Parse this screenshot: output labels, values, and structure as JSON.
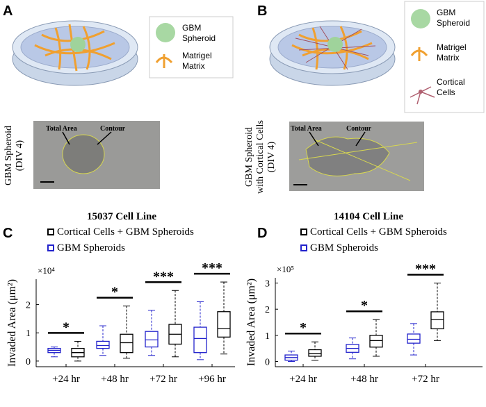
{
  "figure": {
    "panel_labels": [
      "A",
      "B",
      "C",
      "D"
    ],
    "legend_a": [
      [
        "GBM",
        "Spheroid"
      ],
      [
        "Matrigel",
        "Matrix"
      ]
    ],
    "legend_b": [
      [
        "GBM",
        "Spheroid"
      ],
      [
        "Matrigel",
        "Matrix"
      ],
      [
        "Cortical",
        "Cells"
      ]
    ],
    "side_label_a": [
      "GBM Spheroid",
      "(DIV 4)"
    ],
    "side_label_b": [
      "GBM Spheroid",
      "with Cortical Cells",
      "(DIV 4)"
    ],
    "micrograph_labels_a": [
      "Total Area",
      "Contour"
    ],
    "micrograph_labels_b": [
      "Total Area",
      "Contour"
    ]
  },
  "chart_data": [
    {
      "type": "box",
      "title": "15037 Cell Line",
      "y_label": "Invaded Area (μm²)",
      "y_multiplier": "×10⁴",
      "categories": [
        "+24 hr",
        "+48 hr",
        "+72 hr",
        "+96 hr"
      ],
      "ylim": [
        -0.2,
        2.9
      ],
      "yticks": [
        0,
        1,
        2
      ],
      "series": [
        {
          "name": "Cortical Cells + GBM Spheroids",
          "color": "#000000",
          "boxes": [
            {
              "min": 0,
              "q1": 0.15,
              "median": 0.3,
              "q3": 0.45,
              "max": 0.7
            },
            {
              "min": 0.1,
              "q1": 0.3,
              "median": 0.65,
              "q3": 0.95,
              "max": 1.95
            },
            {
              "min": 0.15,
              "q1": 0.6,
              "median": 0.95,
              "q3": 1.3,
              "max": 2.5
            },
            {
              "min": 0.25,
              "q1": 0.85,
              "median": 1.15,
              "q3": 1.75,
              "max": 2.8
            }
          ]
        },
        {
          "name": "GBM Spheroids",
          "color": "#2222cc",
          "boxes": [
            {
              "min": 0.15,
              "q1": 0.3,
              "median": 0.38,
              "q3": 0.45,
              "max": 0.5
            },
            {
              "min": 0.2,
              "q1": 0.45,
              "median": 0.55,
              "q3": 0.7,
              "max": 1.25
            },
            {
              "min": 0.2,
              "q1": 0.5,
              "median": 0.75,
              "q3": 1.05,
              "max": 1.8
            },
            {
              "min": 0.05,
              "q1": 0.3,
              "median": 0.8,
              "q3": 1.2,
              "max": 2.1
            }
          ]
        }
      ],
      "annotations": [
        {
          "text": "*",
          "group": 0
        },
        {
          "text": "*",
          "group": 1
        },
        {
          "text": "***",
          "group": 2
        },
        {
          "text": "***",
          "group": 3
        }
      ]
    },
    {
      "type": "box",
      "title": "14104 Cell Line",
      "y_label": "Invaded Area (μm²)",
      "y_multiplier": "×10⁵",
      "categories": [
        "+24 hr",
        "+48 hr",
        "+72 hr"
      ],
      "ylim": [
        -0.2,
        3.2
      ],
      "yticks": [
        0,
        1,
        2,
        3
      ],
      "series": [
        {
          "name": "Cortical Cells + GBM Spheroids",
          "color": "#000000",
          "boxes": [
            {
              "min": 0.05,
              "q1": 0.2,
              "median": 0.3,
              "q3": 0.45,
              "max": 0.75
            },
            {
              "min": 0.2,
              "q1": 0.55,
              "median": 0.8,
              "q3": 1.0,
              "max": 1.6
            },
            {
              "min": 0.8,
              "q1": 1.25,
              "median": 1.6,
              "q3": 1.9,
              "max": 3.0
            }
          ]
        },
        {
          "name": "GBM Spheroids",
          "color": "#2222cc",
          "boxes": [
            {
              "min": 0,
              "q1": 0.05,
              "median": 0.15,
              "q3": 0.25,
              "max": 0.4
            },
            {
              "min": 0.1,
              "q1": 0.35,
              "median": 0.5,
              "q3": 0.65,
              "max": 0.9
            },
            {
              "min": 0.25,
              "q1": 0.7,
              "median": 0.85,
              "q3": 1.05,
              "max": 1.45
            }
          ]
        }
      ],
      "annotations": [
        {
          "text": "*",
          "group": 0
        },
        {
          "text": "*",
          "group": 1
        },
        {
          "text": "***",
          "group": 2
        }
      ]
    }
  ]
}
